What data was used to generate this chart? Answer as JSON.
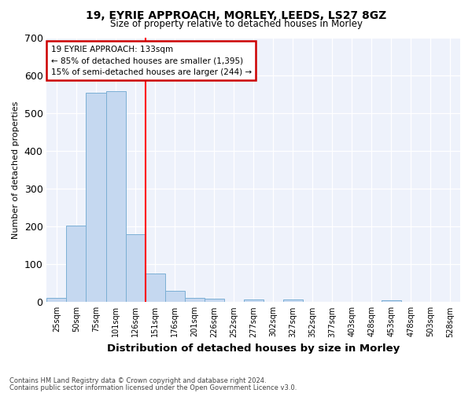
{
  "title1": "19, EYRIE APPROACH, MORLEY, LEEDS, LS27 8GZ",
  "title2": "Size of property relative to detached houses in Morley",
  "xlabel": "Distribution of detached houses by size in Morley",
  "ylabel": "Number of detached properties",
  "footnote1": "Contains HM Land Registry data © Crown copyright and database right 2024.",
  "footnote2": "Contains public sector information licensed under the Open Government Licence v3.0.",
  "annotation_line1": "19 EYRIE APPROACH: 133sqm",
  "annotation_line2": "← 85% of detached houses are smaller (1,395)",
  "annotation_line3": "15% of semi-detached houses are larger (244) →",
  "bar_labels": [
    "25sqm",
    "50sqm",
    "75sqm",
    "101sqm",
    "126sqm",
    "151sqm",
    "176sqm",
    "201sqm",
    "226sqm",
    "252sqm",
    "277sqm",
    "302sqm",
    "327sqm",
    "352sqm",
    "377sqm",
    "403sqm",
    "428sqm",
    "453sqm",
    "478sqm",
    "503sqm",
    "528sqm"
  ],
  "bar_values": [
    10,
    203,
    553,
    557,
    180,
    75,
    30,
    10,
    8,
    0,
    7,
    0,
    7,
    0,
    0,
    0,
    0,
    5,
    0,
    0,
    0
  ],
  "bar_color": "#c5d8f0",
  "bar_edge_color": "#7bafd4",
  "red_line_x": 4.5,
  "ylim": [
    0,
    700
  ],
  "yticks": [
    0,
    100,
    200,
    300,
    400,
    500,
    600,
    700
  ],
  "background_color": "#eef2fb",
  "annotation_box_color": "#ffffff",
  "annotation_box_edge": "#cc0000"
}
